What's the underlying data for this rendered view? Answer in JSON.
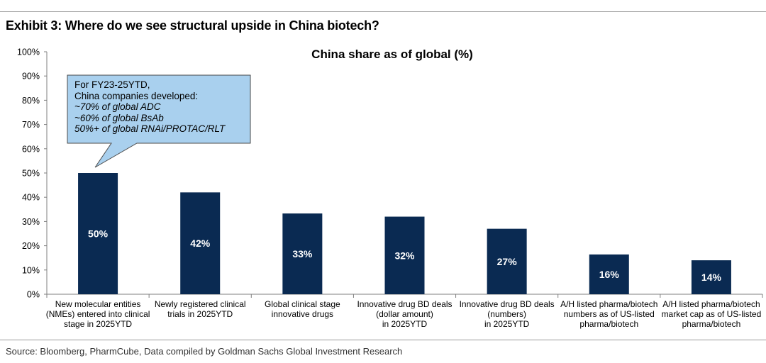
{
  "header": {
    "exhibit_title": "Exhibit 3: Where do we see structural upside in China biotech?"
  },
  "footer": {
    "source": "Source: Bloomberg, PharmCube, Data compiled by Goldman Sachs Global Investment Research"
  },
  "callout": {
    "line1": "For FY23-25YTD,",
    "line2": "China companies developed:",
    "line3": "~70% of global ADC",
    "line4": "~60% of global BsAb",
    "line5": "50%+ of global RNAi/PROTAC/RLT"
  },
  "colors": {
    "bar": "#0a2a52",
    "callout_fill": "#a9d0ee",
    "callout_border": "#4a4a4a",
    "axis": "#7f7f7f"
  },
  "chart_data": {
    "type": "bar",
    "title": "China share as of global (%)",
    "xlabel": "",
    "ylabel": "",
    "ylim": [
      0,
      100
    ],
    "yticks": [
      0,
      10,
      20,
      30,
      40,
      50,
      60,
      70,
      80,
      90,
      100
    ],
    "ytick_labels": [
      "0%",
      "10%",
      "20%",
      "30%",
      "40%",
      "50%",
      "60%",
      "70%",
      "80%",
      "90%",
      "100%"
    ],
    "categories": [
      [
        "New molecular entities",
        "(NMEs) entered into clinical",
        "stage in 2025YTD"
      ],
      [
        "Newly registered clinical",
        "trials in 2025YTD"
      ],
      [
        "Global clinical stage",
        "innovative drugs"
      ],
      [
        "Innovative drug BD deals",
        "(dollar amount)",
        "in 2025YTD"
      ],
      [
        "Innovative drug BD deals",
        "(numbers)",
        "in 2025YTD"
      ],
      [
        "A/H listed pharma/biotech",
        "numbers as of US-listed",
        "pharma/biotech"
      ],
      [
        "A/H listed pharma/biotech",
        "market cap as of US-listed",
        "pharma/biotech"
      ]
    ],
    "values": [
      50,
      42,
      33.3,
      32,
      27,
      16.4,
      14
    ],
    "data_labels": [
      "50%",
      "42%",
      "33%",
      "32%",
      "27%",
      "16%",
      "14%"
    ],
    "grid": false,
    "legend": "none"
  }
}
